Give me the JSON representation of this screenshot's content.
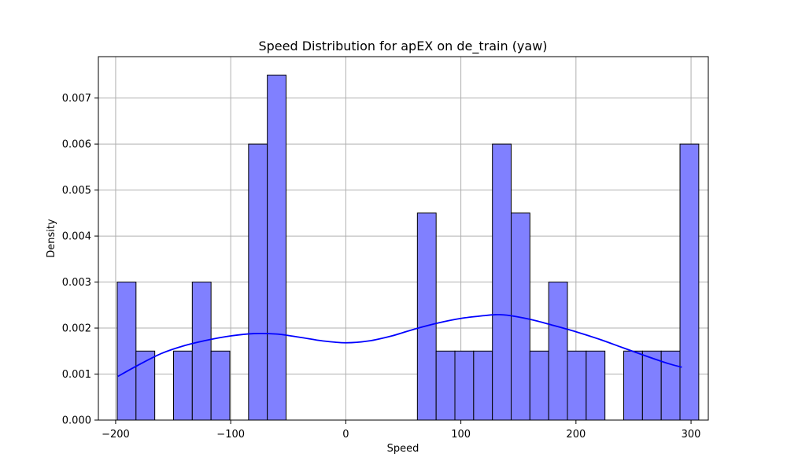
{
  "chart_data": {
    "type": "bar",
    "title": "Speed Distribution for apEX on de_train (yaw)",
    "xlabel": "Speed",
    "ylabel": "Density",
    "xlim": [
      -215,
      315
    ],
    "ylim": [
      0,
      0.0079
    ],
    "xticks": [
      -200,
      -100,
      0,
      100,
      200,
      300
    ],
    "xtick_labels": [
      "−200",
      "−100",
      "0",
      "100",
      "200",
      "300"
    ],
    "yticks": [
      0,
      0.001,
      0.002,
      0.003,
      0.004,
      0.005,
      0.006,
      0.007
    ],
    "ytick_labels": [
      "0.000",
      "0.001",
      "0.002",
      "0.003",
      "0.004",
      "0.005",
      "0.006",
      "0.007"
    ],
    "grid": true,
    "series": [
      {
        "kind": "histogram",
        "bin_start": -198.6,
        "bin_width": 16.3,
        "densities": [
          0.003,
          0.0015,
          0,
          0.0015,
          0.003,
          0.0015,
          0,
          0.006,
          0.0075,
          0,
          0,
          0,
          0,
          0,
          0,
          0,
          0.0045,
          0.0015,
          0.0015,
          0.0015,
          0.006,
          0.0045,
          0.0015,
          0.003,
          0.0015,
          0.0015,
          0,
          0.0015,
          0.0015,
          0.0015,
          0.006
        ],
        "color": "#8080ff",
        "edge_color": "#000000"
      },
      {
        "kind": "kde",
        "x": [
          -198,
          -180,
          -160,
          -140,
          -120,
          -100,
          -80,
          -60,
          -40,
          -20,
          0,
          20,
          40,
          60,
          80,
          100,
          120,
          130,
          140,
          160,
          180,
          200,
          220,
          240,
          260,
          280,
          292
        ],
        "y": [
          0.00095,
          0.0012,
          0.00145,
          0.00162,
          0.00174,
          0.00183,
          0.00188,
          0.00187,
          0.0018,
          0.00172,
          0.00168,
          0.00172,
          0.00183,
          0.00198,
          0.00211,
          0.00221,
          0.00227,
          0.00229,
          0.00228,
          0.00219,
          0.00206,
          0.00192,
          0.00176,
          0.00158,
          0.0014,
          0.00123,
          0.00115
        ],
        "color": "#0000ff"
      }
    ]
  }
}
